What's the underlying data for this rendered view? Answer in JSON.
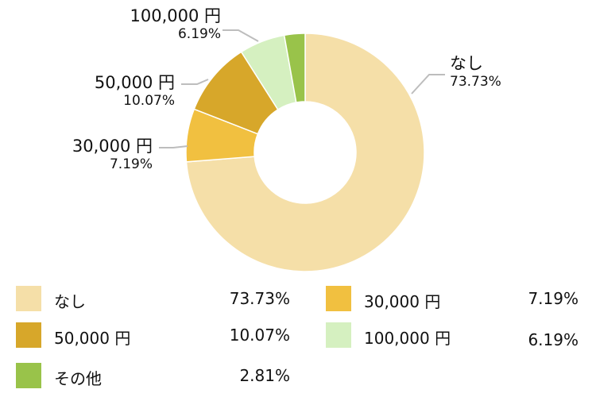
{
  "chart_data": {
    "type": "pie",
    "donut": true,
    "categories": [
      "なし",
      "30,000 円",
      "50,000 円",
      "100,000 円",
      "その他"
    ],
    "values": [
      73.73,
      7.19,
      10.07,
      6.19,
      2.81
    ],
    "value_labels": [
      "73.73%",
      "7.19%",
      "10.07%",
      "6.19%",
      "2.81%"
    ],
    "colors": [
      "#f5dfa8",
      "#f1c040",
      "#d7a72a",
      "#d5f0c0",
      "#99c34a"
    ],
    "title": "",
    "legend_position": "bottom"
  },
  "callouts": {
    "nashi": {
      "name": "なし",
      "pct": "73.73%"
    },
    "y30000": {
      "name": "30,000 円",
      "pct": "7.19%"
    },
    "y50000": {
      "name": "50,000 円",
      "pct": "10.07%"
    },
    "y100000": {
      "name": "100,000 円",
      "pct": "6.19%"
    }
  },
  "legend": {
    "items": [
      {
        "label": "なし",
        "value": "73.73%",
        "color": "#f5dfa8"
      },
      {
        "label": "30,000 円",
        "value": "7.19%",
        "color": "#f1c040"
      },
      {
        "label": "50,000 円",
        "value": "10.07%",
        "color": "#d7a72a"
      },
      {
        "label": "100,000 円",
        "value": "6.19%",
        "color": "#d5f0c0"
      },
      {
        "label": "その他",
        "value": "2.81%",
        "color": "#99c34a"
      }
    ]
  }
}
